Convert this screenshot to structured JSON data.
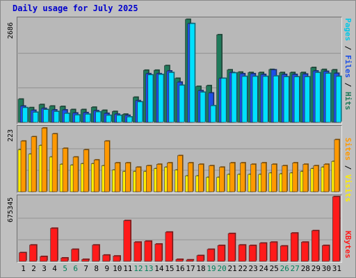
{
  "title": "Daily usage for July 2025",
  "chart_data": [
    {
      "type": "bar",
      "panel": "hits-files-pages",
      "x": [
        "1",
        "2",
        "3",
        "4",
        "5",
        "6",
        "7",
        "8",
        "9",
        "10",
        "11",
        "12",
        "13",
        "14",
        "15",
        "16",
        "17",
        "18",
        "19",
        "20",
        "21",
        "22",
        "23",
        "24",
        "25",
        "26",
        "27",
        "28",
        "29",
        "30",
        "31"
      ],
      "weekend_days": [
        "5",
        "6",
        "12",
        "13",
        "19",
        "20",
        "26",
        "27"
      ],
      "max_label": "2686",
      "ylim": [
        0,
        2686
      ],
      "series": [
        {
          "name": "Hits",
          "color": "#1f7a5a",
          "values": [
            600,
            380,
            460,
            420,
            410,
            330,
            330,
            390,
            310,
            280,
            210,
            650,
            1350,
            1350,
            1470,
            1140,
            2670,
            930,
            950,
            2270,
            1360,
            1300,
            1290,
            1290,
            1370,
            1290,
            1290,
            1290,
            1420,
            1370,
            1360
          ]
        },
        {
          "name": "Files",
          "color": "#1c4fe8",
          "values": [
            420,
            310,
            360,
            320,
            320,
            240,
            250,
            300,
            230,
            210,
            180,
            560,
            1260,
            1260,
            1330,
            1040,
            2560,
            820,
            760,
            1140,
            1290,
            1260,
            1260,
            1240,
            1360,
            1240,
            1240,
            1250,
            1330,
            1320,
            1270
          ]
        },
        {
          "name": "Pages",
          "color": "#00e0ff",
          "values": [
            380,
            260,
            330,
            280,
            230,
            190,
            210,
            270,
            180,
            180,
            140,
            530,
            1230,
            1240,
            1290,
            960,
            2560,
            780,
            430,
            1140,
            1280,
            1190,
            1190,
            1190,
            1200,
            1180,
            1180,
            1180,
            1290,
            1270,
            1190
          ]
        }
      ],
      "axis_labels": [
        "Pages",
        "Files",
        "Hits"
      ]
    },
    {
      "type": "bar",
      "panel": "visits-sites",
      "x": [
        "1",
        "2",
        "3",
        "4",
        "5",
        "6",
        "7",
        "8",
        "9",
        "10",
        "11",
        "12",
        "13",
        "14",
        "15",
        "16",
        "17",
        "18",
        "19",
        "20",
        "21",
        "22",
        "23",
        "24",
        "25",
        "26",
        "27",
        "28",
        "29",
        "30",
        "31"
      ],
      "max_label": "223",
      "ylim": [
        0,
        223
      ],
      "series": [
        {
          "name": "Visits",
          "color": "#ffee00",
          "values": [
            145,
            130,
            160,
            120,
            95,
            92,
            97,
            97,
            90,
            75,
            70,
            70,
            70,
            80,
            85,
            75,
            55,
            55,
            50,
            50,
            60,
            60,
            60,
            60,
            65,
            62,
            65,
            70,
            80,
            85,
            105
          ]
        },
        {
          "name": "Sites",
          "color": "#ff9900",
          "values": [
            175,
            190,
            220,
            200,
            150,
            120,
            145,
            110,
            175,
            100,
            100,
            85,
            90,
            95,
            100,
            125,
            100,
            95,
            90,
            85,
            100,
            100,
            95,
            100,
            95,
            90,
            100,
            95,
            90,
            95,
            180
          ]
        }
      ],
      "axis_labels": [
        "Sites",
        "Visits"
      ]
    },
    {
      "type": "bar",
      "panel": "kbytes",
      "x": [
        "1",
        "2",
        "3",
        "4",
        "5",
        "6",
        "7",
        "8",
        "9",
        "10",
        "11",
        "12",
        "13",
        "14",
        "15",
        "16",
        "17",
        "18",
        "19",
        "20",
        "21",
        "22",
        "23",
        "24",
        "25",
        "26",
        "27",
        "28",
        "29",
        "30",
        "31"
      ],
      "max_label": "675345",
      "ylim": [
        0,
        675345
      ],
      "series": [
        {
          "name": "KBytes",
          "color": "#ff1a1a",
          "values": [
            90000,
            170000,
            50000,
            345000,
            35000,
            125000,
            20000,
            170000,
            65000,
            55000,
            425000,
            200000,
            210000,
            180000,
            305000,
            20000,
            15000,
            60000,
            125000,
            165000,
            290000,
            170000,
            165000,
            190000,
            200000,
            160000,
            295000,
            200000,
            320000,
            165000,
            675345
          ]
        }
      ],
      "axis_labels": [
        "KBytes"
      ]
    }
  ],
  "colors": {
    "background": "#c0c0c0",
    "weekday_label": "#000000",
    "weekend_label": "#00805a",
    "title": "#0000cc"
  }
}
